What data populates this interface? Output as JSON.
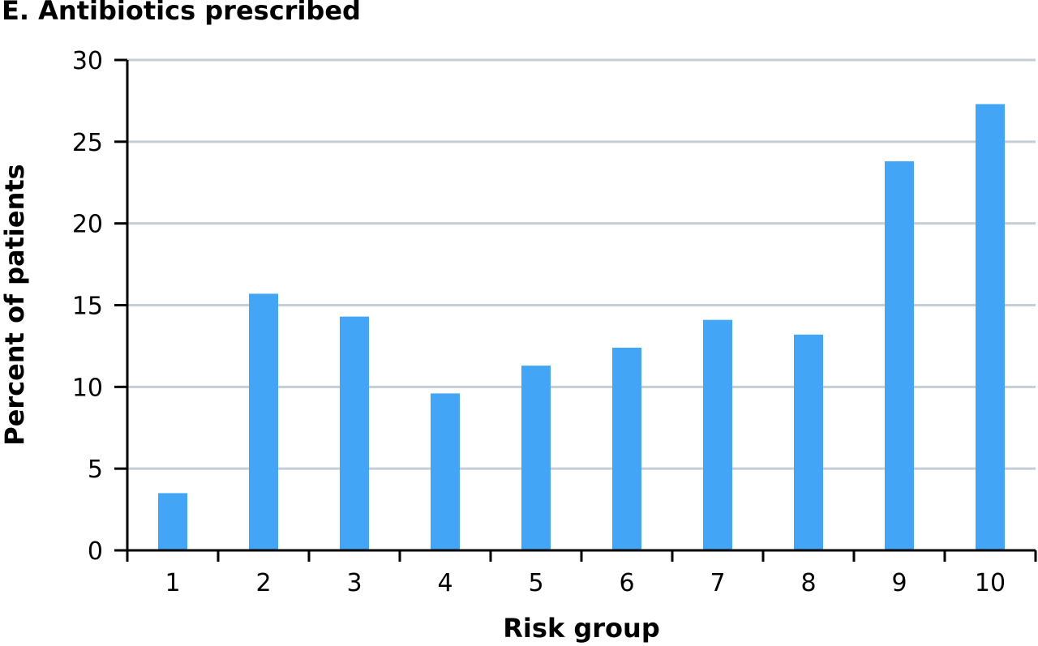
{
  "chart_data": {
    "type": "bar",
    "title": "E. Antibiotics prescribed",
    "xlabel": "Risk group",
    "ylabel": "Percent of patients",
    "categories": [
      "1",
      "2",
      "3",
      "4",
      "5",
      "6",
      "7",
      "8",
      "9",
      "10"
    ],
    "values": [
      3.5,
      15.7,
      14.3,
      9.6,
      11.3,
      12.4,
      14.1,
      13.2,
      23.8,
      27.3
    ],
    "ylim": [
      0,
      30
    ],
    "yticks": [
      "0",
      "5",
      "10",
      "15",
      "20",
      "25",
      "30"
    ],
    "grid": true,
    "legend": "none",
    "bar_color": "#42a5f5",
    "grid_color": "#c5ced6"
  }
}
